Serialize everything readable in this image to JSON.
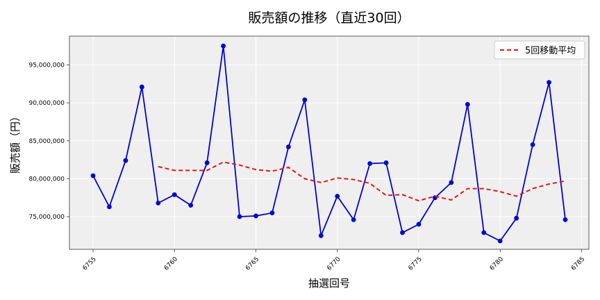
{
  "chart_data": {
    "type": "line",
    "title": "販売額の推移（直近30回）",
    "xlabel": "抽選回号",
    "ylabel": "販売額（円）",
    "xlim": [
      6753.55,
      6785.45
    ],
    "ylim": [
      70700000,
      98800000
    ],
    "grid": true,
    "legend_position": "top-right",
    "x_ticks": [
      6755,
      6760,
      6765,
      6770,
      6775,
      6780,
      6785
    ],
    "y_ticks": [
      75000000,
      80000000,
      85000000,
      90000000,
      95000000
    ],
    "y_tick_labels": [
      "75,000,000",
      "80,000,000",
      "85,000,000",
      "90,000,000",
      "95,000,000"
    ],
    "series": [
      {
        "name": "",
        "style": "solid-line-with-markers",
        "color": "#0000dd",
        "x": [
          6755,
          6756,
          6757,
          6758,
          6759,
          6760,
          6761,
          6762,
          6763,
          6764,
          6765,
          6766,
          6767,
          6768,
          6769,
          6770,
          6771,
          6772,
          6773,
          6774,
          6775,
          6776,
          6777,
          6778,
          6779,
          6780,
          6781,
          6782,
          6783,
          6784
        ],
        "values": [
          80400000,
          76300000,
          82400000,
          92100000,
          76800000,
          77900000,
          76500000,
          82100000,
          97500000,
          75000000,
          75100000,
          75500000,
          84200000,
          90400000,
          72500000,
          77700000,
          74600000,
          82000000,
          82100000,
          72900000,
          74000000,
          77500000,
          79500000,
          89800000,
          72900000,
          71800000,
          74800000,
          84500000,
          92700000,
          74600000
        ]
      },
      {
        "name": "5回移動平均",
        "style": "dashed",
        "color": "#ee1111",
        "x": [
          6759,
          6760,
          6761,
          6762,
          6763,
          6764,
          6765,
          6766,
          6767,
          6768,
          6769,
          6770,
          6771,
          6772,
          6773,
          6774,
          6775,
          6776,
          6777,
          6778,
          6779,
          6780,
          6781,
          6782,
          6783,
          6784
        ],
        "values": [
          81600000,
          81100000,
          81100000,
          81100000,
          82200000,
          81800000,
          81200000,
          81000000,
          81500000,
          80000000,
          79500000,
          80100000,
          79900000,
          79400000,
          77800000,
          77900000,
          77100000,
          77700000,
          77200000,
          78700000,
          78700000,
          78300000,
          77700000,
          78700000,
          79300000,
          79700000
        ]
      }
    ]
  }
}
